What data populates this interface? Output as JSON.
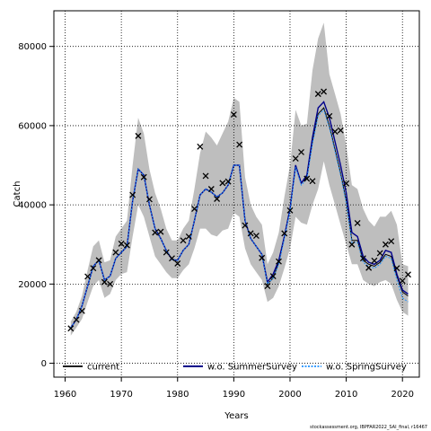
{
  "chart_data": {
    "type": "line",
    "title": "",
    "xlabel": "Years",
    "ylabel": "Catch",
    "xlim": [
      1958,
      2023
    ],
    "ylim": [
      -3500,
      89000
    ],
    "xticks": [
      1960,
      1970,
      1980,
      1990,
      2000,
      2010,
      2020
    ],
    "yticks": [
      0,
      20000,
      40000,
      60000,
      80000
    ],
    "grid": true,
    "legend_placement": "bottom",
    "x": [
      1961,
      1962,
      1963,
      1964,
      1965,
      1966,
      1967,
      1968,
      1969,
      1970,
      1971,
      1972,
      1973,
      1974,
      1975,
      1976,
      1977,
      1978,
      1979,
      1980,
      1981,
      1982,
      1983,
      1984,
      1985,
      1986,
      1987,
      1988,
      1989,
      1990,
      1991,
      1992,
      1993,
      1994,
      1995,
      1996,
      1997,
      1998,
      1999,
      2000,
      2001,
      2002,
      2003,
      2004,
      2005,
      2006,
      2007,
      2008,
      2009,
      2010,
      2011,
      2012,
      2013,
      2014,
      2015,
      2016,
      2017,
      2018,
      2019,
      2020,
      2021
    ],
    "observed": {
      "marker": "x",
      "values": [
        8800,
        11000,
        13200,
        21900,
        24000,
        26000,
        20500,
        20000,
        28000,
        30200,
        29800,
        42500,
        57400,
        47000,
        41400,
        33000,
        33200,
        28000,
        26500,
        25200,
        31000,
        32000,
        39000,
        54700,
        47300,
        44000,
        41500,
        45500,
        45900,
        62800,
        55200,
        34800,
        32800,
        32200,
        26600,
        19500,
        22000,
        25700,
        32800,
        38600,
        51700,
        53300,
        46600,
        46000,
        68000,
        68600,
        62400,
        58500,
        58800,
        45400,
        30000,
        35400,
        26500,
        24100,
        25900,
        27800,
        30000,
        30800,
        24000,
        20800,
        22400
      ]
    },
    "confidence_band": {
      "color": "#bebebe",
      "lower": [
        7000,
        9000,
        11200,
        15500,
        19500,
        21000,
        16500,
        17500,
        21000,
        22500,
        23000,
        32000,
        40000,
        37000,
        32000,
        27000,
        25000,
        23000,
        21500,
        21500,
        23500,
        25000,
        29000,
        34000,
        34000,
        32500,
        32000,
        33500,
        34000,
        38000,
        37000,
        29000,
        25000,
        23000,
        21000,
        15500,
        16500,
        19500,
        24000,
        29000,
        37000,
        35500,
        35000,
        40000,
        44000,
        51000,
        45000,
        40000,
        35000,
        30000,
        25000,
        25000,
        21000,
        20000,
        19500,
        20500,
        21000,
        20000,
        16000,
        13000,
        12000
      ],
      "upper": [
        10500,
        13000,
        17000,
        23500,
        29500,
        31000,
        25500,
        26000,
        32000,
        34000,
        36000,
        50000,
        62000,
        58000,
        49000,
        43000,
        39000,
        34000,
        31000,
        31000,
        34000,
        36000,
        44000,
        53000,
        58500,
        57000,
        55000,
        58000,
        61000,
        67000,
        66000,
        47000,
        40000,
        37000,
        35000,
        25000,
        28000,
        33000,
        42000,
        50000,
        64000,
        60000,
        60500,
        74000,
        82000,
        86000,
        73000,
        68000,
        63000,
        55000,
        45000,
        44000,
        39000,
        36000,
        34500,
        37000,
        37000,
        38500,
        35000,
        25000,
        24500
      ]
    },
    "series": [
      {
        "name": "current",
        "color": "#000000",
        "dash": "solid",
        "values": [
          9000,
          11000,
          14500,
          19500,
          24500,
          26000,
          21000,
          22000,
          26500,
          28000,
          29500,
          41000,
          49000,
          47500,
          40000,
          34000,
          31500,
          28500,
          26200,
          26000,
          28500,
          30000,
          36000,
          42500,
          44000,
          43200,
          42000,
          43000,
          45000,
          50000,
          50000,
          36000,
          31500,
          29500,
          27500,
          20000,
          21500,
          25500,
          32000,
          39000,
          50000,
          45500,
          47000,
          56000,
          63000,
          64500,
          60000,
          54000,
          48000,
          41000,
          31000,
          31000,
          26000,
          25000,
          24500,
          25500,
          27500,
          27000,
          22000,
          18000,
          17000
        ]
      },
      {
        "name": "w.o. SummerSurvey",
        "color": "#00008b",
        "dash": "solid",
        "values": [
          9000,
          11000,
          14500,
          19500,
          24500,
          26000,
          21000,
          22000,
          26500,
          28000,
          29500,
          41000,
          49000,
          47500,
          40000,
          34000,
          31500,
          28500,
          26200,
          26000,
          28500,
          30000,
          36000,
          42500,
          44000,
          43200,
          42000,
          43000,
          45000,
          50000,
          50000,
          36000,
          31500,
          29500,
          27500,
          20500,
          22500,
          26000,
          32000,
          39000,
          50000,
          45500,
          47500,
          57000,
          64500,
          66000,
          62000,
          56000,
          50000,
          43000,
          33000,
          32000,
          27000,
          25500,
          25000,
          26000,
          28500,
          28000,
          22500,
          18500,
          17500
        ]
      },
      {
        "name": "w.o. SpringSurvey",
        "color": "#1e90ff",
        "dash": "dotted",
        "values": [
          9000,
          11000,
          14500,
          19500,
          24500,
          26000,
          21000,
          22000,
          26500,
          28000,
          29500,
          41000,
          49000,
          47500,
          40000,
          34000,
          31500,
          28500,
          26200,
          26000,
          28500,
          30000,
          36000,
          42500,
          44000,
          43200,
          42000,
          43000,
          45000,
          50000,
          50000,
          36000,
          31500,
          29500,
          27500,
          20000,
          21500,
          25000,
          31500,
          38500,
          49500,
          45000,
          46500,
          55500,
          62500,
          64000,
          59500,
          53500,
          47500,
          40500,
          30500,
          30500,
          25500,
          24500,
          24000,
          25000,
          27000,
          26500,
          21000,
          16500,
          15500
        ]
      }
    ],
    "footnote": "stockassessment.org, IBPFAR2022_SAI_final, r16467"
  }
}
